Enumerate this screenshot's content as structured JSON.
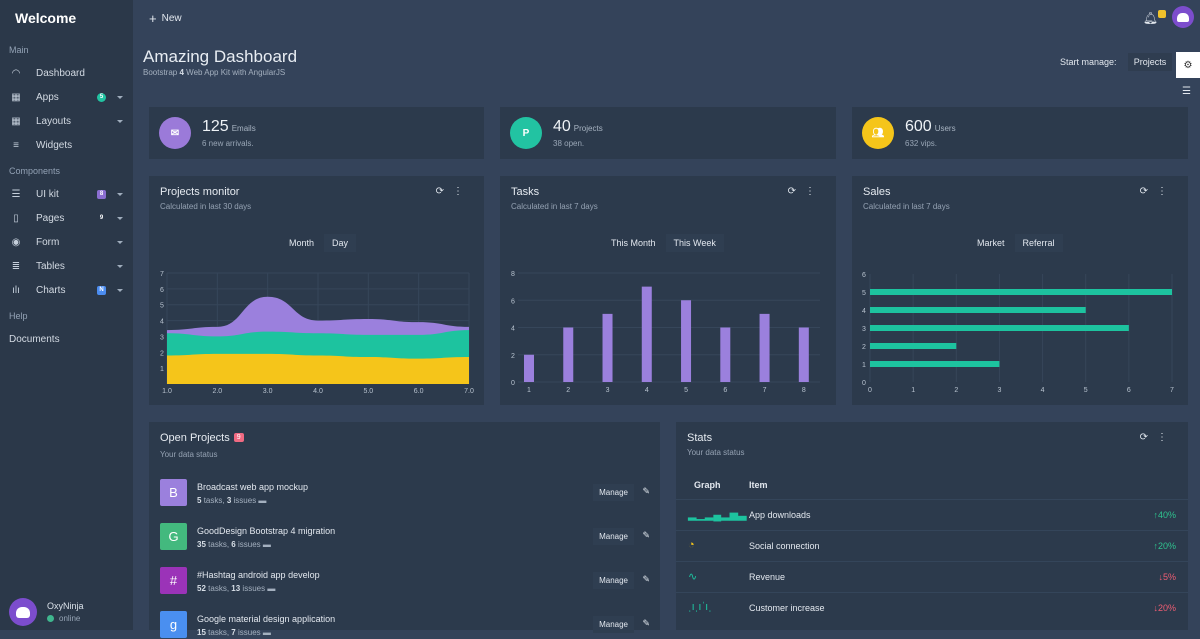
{
  "sidebar": {
    "brand": "Welcome",
    "sections": {
      "main": "Main",
      "components": "Components",
      "help": "Help"
    },
    "main_items": [
      {
        "label": "Dashboard",
        "icon": "dashboard-icon"
      },
      {
        "label": "Apps",
        "icon": "grid-icon",
        "badge": "5",
        "badge_color": "#22c3a2"
      },
      {
        "label": "Layouts",
        "icon": "layout-icon"
      },
      {
        "label": "Widgets",
        "icon": "widgets-icon"
      }
    ],
    "component_items": [
      {
        "label": "UI kit",
        "icon": "sliders-icon",
        "badge": "8",
        "badge_color": "#8b6ed1"
      },
      {
        "label": "Pages",
        "icon": "pages-icon",
        "badge": "9"
      },
      {
        "label": "Form",
        "icon": "form-icon"
      },
      {
        "label": "Tables",
        "icon": "table-icon"
      },
      {
        "label": "Charts",
        "icon": "chart-icon",
        "badge": "N",
        "badge_color": "#4b8cf0"
      }
    ],
    "documents": "Documents",
    "user": {
      "name": "OxyNinja",
      "status": "online"
    }
  },
  "topbar": {
    "new_label": "New"
  },
  "header": {
    "title": "Amazing Dashboard",
    "subtitle_a": "Bootstrap",
    "subtitle_b": "4",
    "subtitle_c": "Web App Kit with AngularJS",
    "start_manage": "Start manage:",
    "projects_btn": "Projects"
  },
  "stats": [
    {
      "value": "125",
      "unit": "Emails",
      "sub": "6 new arrivals.",
      "color": "#9b7ad9",
      "icon": "envelope-icon"
    },
    {
      "value": "40",
      "unit": "Projects",
      "sub": "38 open.",
      "color": "#22c3a2",
      "icon_text": "P"
    },
    {
      "value": "600",
      "unit": "Users",
      "sub": "632 vips.",
      "color": "#f5c51a",
      "icon": "users-icon"
    }
  ],
  "projects_monitor": {
    "title": "Projects monitor",
    "sub": "Calculated in last 30 days",
    "toggle": [
      "Month",
      "Day"
    ]
  },
  "tasks": {
    "title": "Tasks",
    "sub": "Calculated in last 7 days",
    "toggle": [
      "This Month",
      "This Week"
    ]
  },
  "sales": {
    "title": "Sales",
    "sub": "Calculated in last 7 days",
    "toggle": [
      "Market",
      "Referral"
    ]
  },
  "chart_data": [
    {
      "type": "area",
      "x": [
        1,
        2,
        3,
        4,
        5,
        6,
        7
      ],
      "xlim": [
        1,
        7
      ],
      "ylim": [
        0,
        7
      ],
      "series": [
        {
          "values": [
            1.8,
            1.9,
            1.9,
            1.8,
            1.7,
            1.6,
            1.7
          ],
          "color": "#f5c51a"
        },
        {
          "values": [
            3.2,
            3.0,
            3.3,
            3.2,
            3.1,
            3.1,
            3.4
          ],
          "color": "#1dc39f"
        },
        {
          "values": [
            3.4,
            3.6,
            5.5,
            4.0,
            4.1,
            3.9,
            3.6
          ],
          "color": "#9b80dd"
        }
      ]
    },
    {
      "type": "bar",
      "categories": [
        1,
        2,
        3,
        4,
        5,
        6,
        7,
        8
      ],
      "values": [
        2,
        4,
        5,
        7,
        6,
        4,
        5,
        4
      ],
      "ylim": [
        0,
        8
      ],
      "color": "#9b80dd"
    },
    {
      "type": "bar",
      "orientation": "horizontal",
      "categories": [
        1,
        2,
        3,
        4,
        5
      ],
      "values": [
        3,
        2,
        6,
        5,
        7
      ],
      "xlim": [
        0,
        7
      ],
      "ylim": [
        0,
        6
      ],
      "color": "#1dc39f"
    }
  ],
  "open_projects": {
    "title": "Open Projects",
    "badge": "9",
    "sub": "Your data status",
    "manage": "Manage",
    "items": [
      {
        "letter": "B",
        "color": "#9b80dd",
        "name": "Broadcast web app mockup",
        "tasks": "5",
        "issues": "3"
      },
      {
        "letter": "G",
        "color": "#43b97e",
        "name": "GoodDesign Bootstrap 4 migration",
        "tasks": "35",
        "issues": "6"
      },
      {
        "letter": "#",
        "color": "#9b33b8",
        "name": "#Hashtag android app develop",
        "tasks": "52",
        "issues": "13"
      },
      {
        "letter": "g",
        "color": "#4a8ff0",
        "name": "Google material design application",
        "tasks": "15",
        "issues": "7"
      }
    ],
    "tasks_label": "tasks,",
    "issues_label": "issues"
  },
  "stats_card": {
    "title": "Stats",
    "sub": "Your data status",
    "col_graph": "Graph",
    "col_item": "Item",
    "rows": [
      {
        "item": "App downloads",
        "value": "40%",
        "dir": "up",
        "arrow": "↑"
      },
      {
        "item": "Social connection",
        "value": "20%",
        "dir": "up",
        "arrow": "↑"
      },
      {
        "item": "Revenue",
        "value": "5%",
        "dir": "dn",
        "arrow": "↓"
      },
      {
        "item": "Customer increase",
        "value": "20%",
        "dir": "dn",
        "arrow": "↓"
      }
    ]
  }
}
